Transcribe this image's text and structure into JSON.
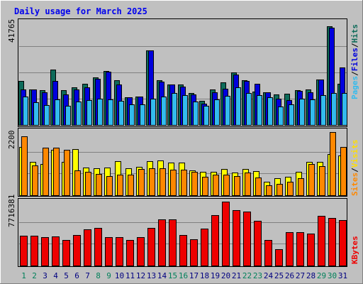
{
  "colors": {
    "hits": "#0e6b5a",
    "files": "#0000dd",
    "pages": "#33bbee",
    "visits": "#ffff00",
    "sites": "#ff8800",
    "kbytes": "#ee0000",
    "weekend": "#00805a",
    "weekday": "#000080",
    "title": "#0000ee"
  },
  "chart_data": [
    {
      "type": "bar",
      "title": "Daily usage for March 2025",
      "ymax_label": "41765",
      "legend": [
        "Pages",
        "Files",
        "Hits"
      ],
      "categories": [
        "1",
        "2",
        "3",
        "4",
        "5",
        "6",
        "7",
        "8",
        "9",
        "10",
        "11",
        "12",
        "13",
        "14",
        "15",
        "16",
        "17",
        "18",
        "19",
        "20",
        "21",
        "22",
        "23",
        "24",
        "25",
        "26",
        "27",
        "28",
        "29",
        "30",
        "31"
      ],
      "weekend_days": [
        "1",
        "2",
        "8",
        "9",
        "15",
        "16",
        "22",
        "23",
        "29",
        "30"
      ],
      "ylim": [
        0,
        41765
      ],
      "series": [
        {
          "name": "Hits",
          "values": [
            17500,
            14200,
            13800,
            22000,
            13700,
            15000,
            16500,
            18800,
            21500,
            17700,
            11100,
            11300,
            29500,
            17800,
            16200,
            16000,
            12600,
            9700,
            14200,
            17000,
            20900,
            17800,
            13200,
            13000,
            12200,
            12400,
            13900,
            14100,
            18100,
            39300,
            16400
          ]
        },
        {
          "name": "Files",
          "values": [
            14000,
            14000,
            13000,
            17500,
            12000,
            14200,
            15000,
            18400,
            21200,
            16000,
            11100,
            11300,
            29500,
            17300,
            16000,
            15200,
            12100,
            8500,
            12900,
            14500,
            20000,
            17400,
            16300,
            13000,
            10500,
            9800,
            13600,
            12900,
            18100,
            38600,
            22800
          ]
        },
        {
          "name": "Pages",
          "values": [
            11400,
            9000,
            7800,
            10100,
            7700,
            9300,
            9800,
            10500,
            10200,
            9700,
            8100,
            8100,
            10500,
            11400,
            12600,
            11800,
            9300,
            7600,
            10300,
            11700,
            15000,
            12800,
            11900,
            11000,
            7200,
            8300,
            10400,
            10100,
            11900,
            12600,
            12600
          ]
        }
      ]
    },
    {
      "type": "bar",
      "ymax_label": "2200",
      "legend": [
        "Sites",
        "Visits"
      ],
      "categories": [
        "1",
        "2",
        "3",
        "4",
        "5",
        "6",
        "7",
        "8",
        "9",
        "10",
        "11",
        "12",
        "13",
        "14",
        "15",
        "16",
        "17",
        "18",
        "19",
        "20",
        "21",
        "22",
        "23",
        "24",
        "25",
        "26",
        "27",
        "28",
        "29",
        "30",
        "31"
      ],
      "ylim": [
        0,
        2200
      ],
      "series": [
        {
          "name": "Visits",
          "values": [
            1620,
            1120,
            1040,
            1520,
            1120,
            1540,
            920,
            910,
            920,
            1140,
            890,
            940,
            1140,
            1150,
            1080,
            1080,
            830,
            790,
            790,
            880,
            760,
            880,
            800,
            450,
            560,
            620,
            780,
            1120,
            1120,
            1370,
            1320
          ]
        },
        {
          "name": "Sites",
          "values": [
            1960,
            1000,
            1580,
            1590,
            1520,
            820,
            780,
            700,
            630,
            680,
            680,
            880,
            900,
            900,
            860,
            860,
            780,
            620,
            690,
            680,
            640,
            760,
            600,
            330,
            390,
            460,
            570,
            1050,
            980,
            2100,
            1600
          ]
        }
      ]
    },
    {
      "type": "bar",
      "ymax_label": "7716381",
      "legend": [
        "KBytes"
      ],
      "categories": [
        "1",
        "2",
        "3",
        "4",
        "5",
        "6",
        "7",
        "8",
        "9",
        "10",
        "11",
        "12",
        "13",
        "14",
        "15",
        "16",
        "17",
        "18",
        "19",
        "20",
        "21",
        "22",
        "23",
        "24",
        "25",
        "26",
        "27",
        "28",
        "29",
        "30",
        "31"
      ],
      "ylim": [
        0,
        7716381
      ],
      "series": [
        {
          "name": "KBytes",
          "values": [
            3500000,
            3500000,
            3300000,
            3400000,
            3000000,
            3600000,
            4200000,
            4400000,
            3300000,
            3300000,
            3000000,
            3300000,
            4400000,
            5400000,
            5400000,
            3600000,
            3100000,
            4300000,
            5900000,
            7500000,
            6500000,
            6300000,
            5200000,
            3000000,
            1900000,
            3900000,
            3900000,
            3700000,
            5800000,
            5600000,
            5300000
          ]
        }
      ]
    }
  ]
}
